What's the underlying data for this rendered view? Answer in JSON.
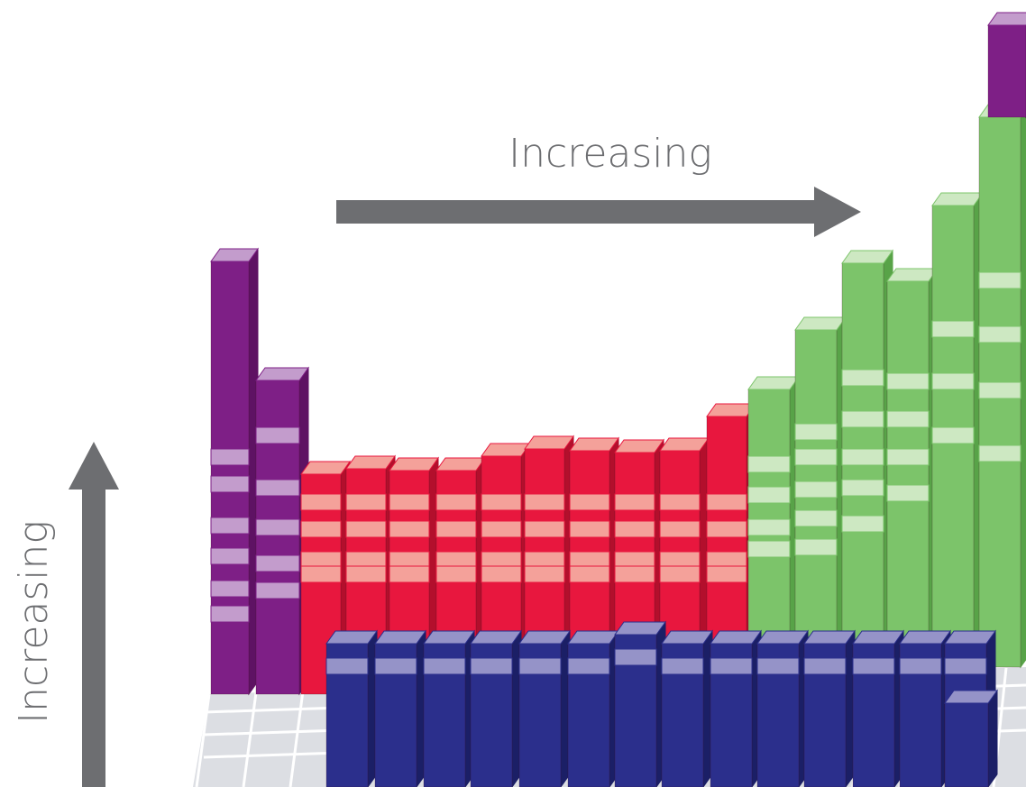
{
  "labels": {
    "horizontal": "Increasing",
    "vertical": "Increasing"
  },
  "colors": {
    "s_block": {
      "front": "#7e1f86",
      "side": "#5e1263",
      "top": "#c39ccc"
    },
    "d_block": {
      "front": "#e8173e",
      "side": "#b30f2c",
      "top": "#f4a19a"
    },
    "p_block": {
      "front": "#7cc46a",
      "side": "#58a348",
      "top": "#cde8c2"
    },
    "f_block": {
      "front": "#2b2f8c",
      "side": "#1b1f66",
      "top": "#9593c8"
    },
    "arrow": "#6d6e71",
    "floor": "#dcdee3"
  },
  "icons": [
    "arrow-right-icon",
    "arrow-up-icon"
  ]
}
